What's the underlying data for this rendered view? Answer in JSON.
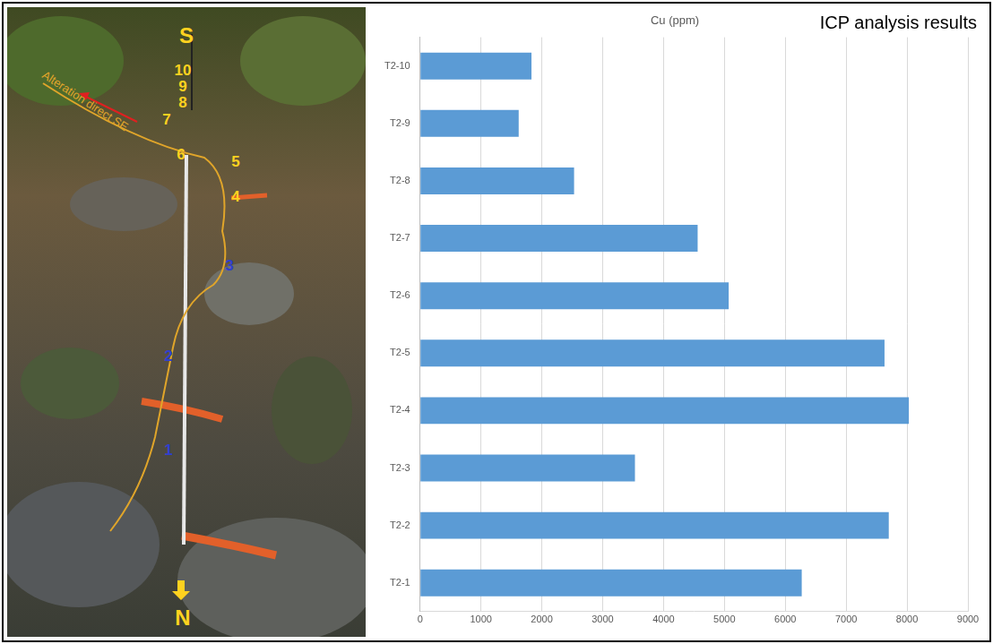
{
  "chart_data": {
    "type": "bar",
    "orientation": "horizontal",
    "title": "Cu (ppm)",
    "subtitle": "ICP analysis results",
    "categories": [
      "T2-10",
      "T2-9",
      "T2-8",
      "T2-7",
      "T2-6",
      "T2-5",
      "T2-4",
      "T2-3",
      "T2-2",
      "T2-1"
    ],
    "values": [
      1830,
      1620,
      2530,
      4560,
      5070,
      7630,
      8030,
      3530,
      7700,
      6270
    ],
    "color": "#5b9bd5",
    "xlim": [
      0,
      9000
    ],
    "xticks": [
      0,
      1000,
      2000,
      3000,
      4000,
      5000,
      6000,
      7000,
      8000,
      9000
    ],
    "grid": true
  },
  "photo": {
    "top_label": "S",
    "bottom_label": "N",
    "annotation": "Alteration direct SE",
    "sample_labels": [
      "10",
      "9",
      "8",
      "7",
      "6",
      "5",
      "4",
      "3",
      "2",
      "1"
    ]
  }
}
